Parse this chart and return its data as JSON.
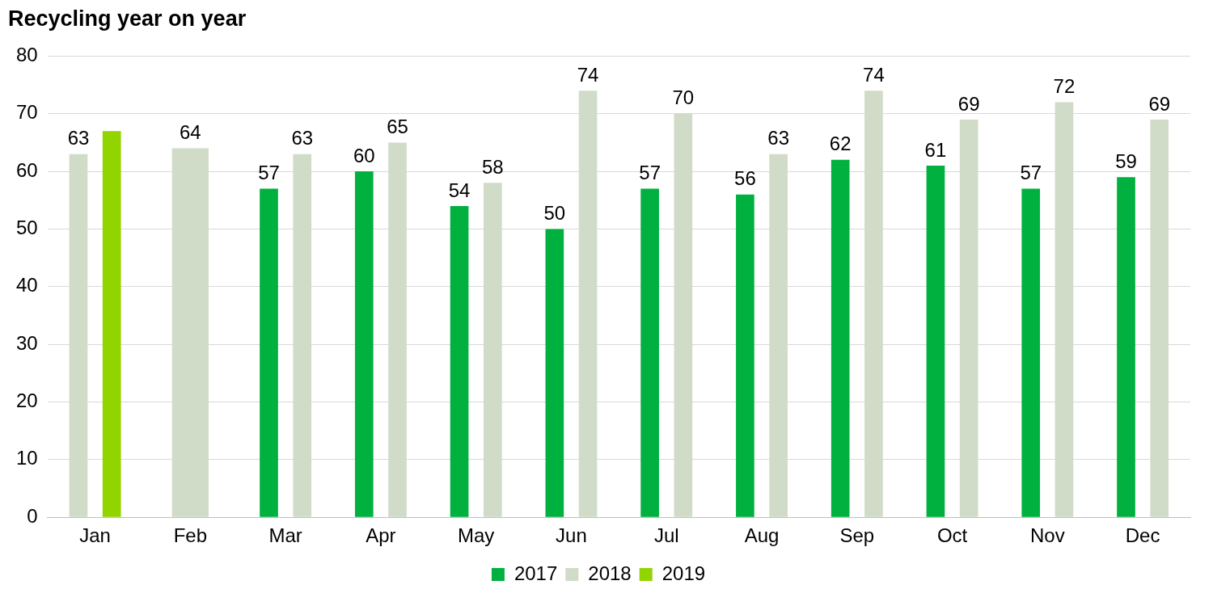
{
  "chart_data": {
    "type": "bar",
    "title": "Recycling year on year",
    "categories": [
      "Jan",
      "Feb",
      "Mar",
      "Apr",
      "May",
      "Jun",
      "Jul",
      "Aug",
      "Sep",
      "Oct",
      "Nov",
      "Dec"
    ],
    "series": [
      {
        "name": "2017",
        "color": "#00b140",
        "values": [
          null,
          null,
          57,
          60,
          54,
          50,
          57,
          56,
          62,
          61,
          57,
          59
        ],
        "value_labels": [
          null,
          null,
          "57",
          "60",
          "54",
          "50",
          "57",
          "56",
          "62",
          "61",
          "57",
          "59"
        ]
      },
      {
        "name": "2018",
        "color": "#d0dcc8",
        "values": [
          63,
          64,
          63,
          65,
          58,
          74,
          70,
          63,
          74,
          69,
          72,
          69
        ],
        "value_labels": [
          "63",
          "64",
          "63",
          "65",
          "58",
          "74",
          "70",
          "63",
          "74",
          "69",
          "72",
          "69"
        ]
      },
      {
        "name": "2019",
        "color": "#92d400",
        "values": [
          67,
          null,
          null,
          null,
          null,
          null,
          null,
          null,
          null,
          null,
          null,
          null
        ],
        "value_labels": [
          null,
          null,
          null,
          null,
          null,
          null,
          null,
          null,
          null,
          null,
          null,
          null
        ]
      }
    ],
    "ylim": [
      0,
      80
    ],
    "yticks": [
      0,
      10,
      20,
      30,
      40,
      50,
      60,
      70,
      80
    ],
    "grid": "y",
    "legend": "bottom"
  }
}
